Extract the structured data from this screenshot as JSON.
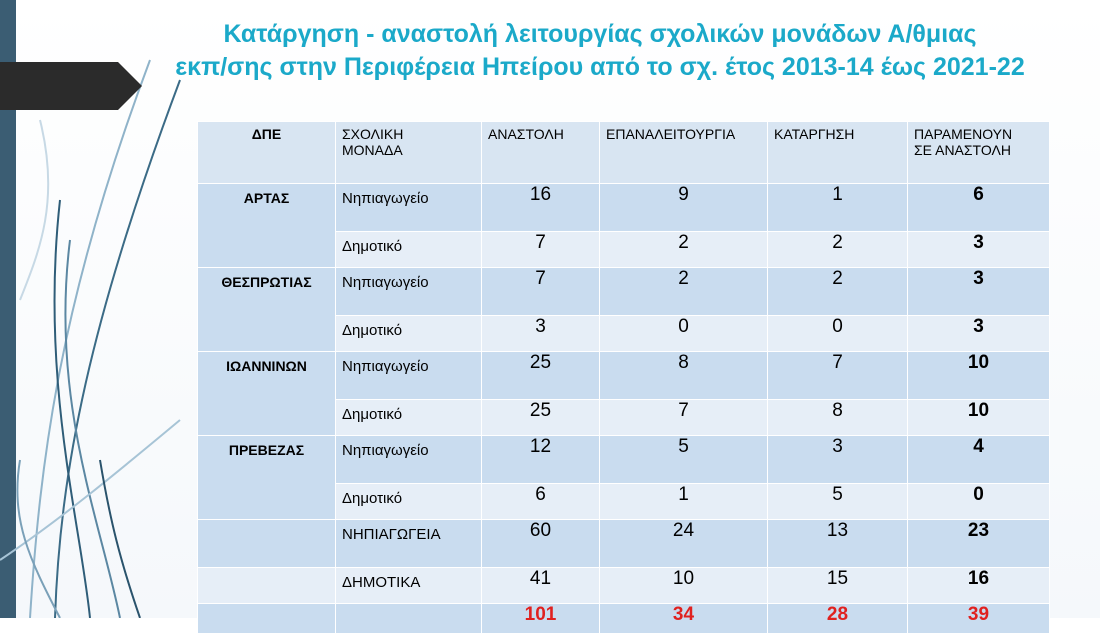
{
  "title": {
    "line1": "Κατάργηση - αναστολή λειτουργίας σχολικών μονάδων Α/θμιας",
    "line2": "εκπ/σης στην Περιφέρεια Ηπείρου από το σχ. έτος 2013-14 έως 2021-22"
  },
  "colors": {
    "title": "#1ba9c9",
    "totals": "#e0211f",
    "band": "#3b5d73",
    "arrow": "#2b2b2b"
  },
  "table": {
    "headers": {
      "c0": "ΔΠΕ",
      "c1_line1": "ΣΧΟΛΙΚΗ",
      "c1_line2": "ΜΟΝΑΔΑ",
      "c2": "ΑΝΑΣΤΟΛΗ",
      "c3": "ΕΠΑΝΑΛΕΙΤΟΥΡΓΙΑ",
      "c4": "ΚΑΤΑΡΓΗΣΗ",
      "c5_line1": "ΠΑΡΑΜΕΝΟΥΝ",
      "c5_line2": "ΣΕ ΑΝΑΣΤΟΛΗ"
    },
    "rows": [
      {
        "dpe": "ΑΡΤΑΣ",
        "unit": "Νηπιαγωγείο",
        "suspension": "16",
        "reopening": "9",
        "abolition": "1",
        "remaining": "6"
      },
      {
        "dpe": "",
        "unit": "Δημοτικό",
        "suspension": "7",
        "reopening": "2",
        "abolition": "2",
        "remaining": "3"
      },
      {
        "dpe": "ΘΕΣΠΡΩΤΙΑΣ",
        "unit": "Νηπιαγωγείο",
        "suspension": "7",
        "reopening": "2",
        "abolition": "2",
        "remaining": "3"
      },
      {
        "dpe": "",
        "unit": "Δημοτικό",
        "suspension": "3",
        "reopening": "0",
        "abolition": "0",
        "remaining": "3"
      },
      {
        "dpe": "ΙΩΑΝΝΙΝΩΝ",
        "unit": "Νηπιαγωγείο",
        "suspension": "25",
        "reopening": "8",
        "abolition": "7",
        "remaining": "10"
      },
      {
        "dpe": "",
        "unit": "Δημοτικό",
        "suspension": "25",
        "reopening": "7",
        "abolition": "8",
        "remaining": "10"
      },
      {
        "dpe": "ΠΡΕΒΕΖΑΣ",
        "unit": "Νηπιαγωγείο",
        "suspension": "12",
        "reopening": "5",
        "abolition": "3",
        "remaining": "4"
      },
      {
        "dpe": "",
        "unit": "Δημοτικό",
        "suspension": "6",
        "reopening": "1",
        "abolition": "5",
        "remaining": "0"
      },
      {
        "dpe": "",
        "unit": "ΝΗΠΙΑΓΩΓΕΙΑ",
        "suspension": "60",
        "reopening": "24",
        "abolition": "13",
        "remaining": "23"
      },
      {
        "dpe": "",
        "unit": "ΔΗΜΟΤΙΚΑ",
        "suspension": "41",
        "reopening": "10",
        "abolition": "15",
        "remaining": "16"
      }
    ],
    "totals": {
      "suspension": "101",
      "reopening": "34",
      "abolition": "28",
      "remaining": "39"
    }
  }
}
